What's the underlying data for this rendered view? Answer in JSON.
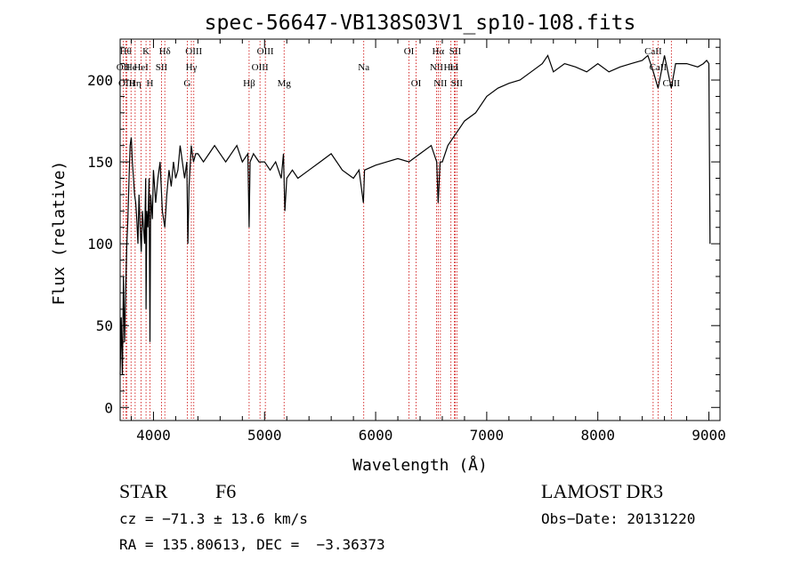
{
  "chart_data": {
    "type": "line",
    "title": "spec-56647-VB138S03V1_sp10-108.fits",
    "xlabel": "Wavelength (Å)",
    "ylabel": "Flux (relative)",
    "xlim": [
      3700,
      9100
    ],
    "ylim": [
      -8,
      225
    ],
    "x_ticks": [
      4000,
      5000,
      6000,
      7000,
      8000,
      9000
    ],
    "y_ticks": [
      0,
      50,
      100,
      150,
      200
    ],
    "grid": false,
    "line_color": "#000000",
    "marker_color": "#cc0000",
    "series": [
      {
        "x": [
          3700,
          3710,
          3720,
          3730,
          3740,
          3750,
          3760,
          3770,
          3780,
          3790,
          3800,
          3810,
          3820,
          3830,
          3840,
          3850,
          3860,
          3870,
          3880,
          3890,
          3900,
          3910,
          3920,
          3930,
          3933,
          3940,
          3950,
          3960,
          3968,
          3975,
          3990,
          4000,
          4020,
          4040,
          4060,
          4080,
          4102,
          4120,
          4140,
          4160,
          4180,
          4200,
          4220,
          4240,
          4260,
          4280,
          4300,
          4310,
          4320,
          4340,
          4360,
          4380,
          4400,
          4450,
          4500,
          4550,
          4600,
          4650,
          4700,
          4750,
          4800,
          4850,
          4861,
          4870,
          4900,
          4950,
          5000,
          5050,
          5100,
          5150,
          5170,
          5183,
          5200,
          5250,
          5300,
          5400,
          5500,
          5600,
          5700,
          5800,
          5850,
          5890,
          5900,
          6000,
          6100,
          6200,
          6300,
          6400,
          6500,
          6550,
          6563,
          6580,
          6600,
          6650,
          6700,
          6750,
          6800,
          6900,
          7000,
          7100,
          7200,
          7300,
          7400,
          7500,
          7550,
          7600,
          7700,
          7800,
          7900,
          8000,
          8100,
          8200,
          8300,
          8400,
          8450,
          8500,
          8542,
          8600,
          8662,
          8700,
          8800,
          8900,
          8950,
          8980,
          9000,
          9010
        ],
        "y": [
          20,
          55,
          20,
          80,
          40,
          70,
          100,
          115,
          140,
          160,
          165,
          150,
          140,
          130,
          125,
          115,
          100,
          130,
          110,
          95,
          120,
          110,
          100,
          140,
          60,
          120,
          110,
          140,
          40,
          130,
          115,
          145,
          125,
          140,
          150,
          120,
          110,
          130,
          145,
          135,
          150,
          140,
          145,
          160,
          150,
          140,
          150,
          100,
          135,
          160,
          150,
          155,
          155,
          150,
          155,
          160,
          155,
          150,
          155,
          160,
          150,
          155,
          110,
          150,
          155,
          150,
          150,
          145,
          150,
          140,
          155,
          120,
          140,
          145,
          140,
          145,
          150,
          155,
          145,
          140,
          145,
          125,
          145,
          148,
          150,
          152,
          150,
          155,
          160,
          150,
          125,
          150,
          150,
          160,
          165,
          170,
          175,
          180,
          190,
          195,
          198,
          200,
          205,
          210,
          215,
          205,
          210,
          208,
          205,
          210,
          205,
          208,
          210,
          212,
          215,
          205,
          195,
          215,
          195,
          210,
          210,
          208,
          210,
          212,
          210,
          100
        ]
      }
    ],
    "line_markers": [
      {
        "x": 3750,
        "label": "Hθ",
        "row": 0
      },
      {
        "x": 3727,
        "label": "OII",
        "row": 1
      },
      {
        "x": 3760,
        "label": "OIII",
        "row": 2
      },
      {
        "x": 3798,
        "label": "He",
        "row": 1
      },
      {
        "x": 3835,
        "label": "Hη",
        "row": 2
      },
      {
        "x": 3889,
        "label": "HeI",
        "row": 1
      },
      {
        "x": 3933,
        "label": "K",
        "row": 0
      },
      {
        "x": 3968,
        "label": "H",
        "row": 2
      },
      {
        "x": 4072,
        "label": "SII",
        "row": 1
      },
      {
        "x": 4102,
        "label": "Hδ",
        "row": 0
      },
      {
        "x": 4304,
        "label": "G",
        "row": 2
      },
      {
        "x": 4341,
        "label": "Hγ",
        "row": 1
      },
      {
        "x": 4363,
        "label": "OIII",
        "row": 0
      },
      {
        "x": 4861,
        "label": "Hβ",
        "row": 2
      },
      {
        "x": 4959,
        "label": "OIII",
        "row": 1
      },
      {
        "x": 5007,
        "label": "OIII",
        "row": 0
      },
      {
        "x": 5176,
        "label": "Mg",
        "row": 2
      },
      {
        "x": 5893,
        "label": "Na",
        "row": 1
      },
      {
        "x": 6300,
        "label": "OI",
        "row": 0
      },
      {
        "x": 6364,
        "label": "OI",
        "row": 2
      },
      {
        "x": 6548,
        "label": "NII",
        "row": 1
      },
      {
        "x": 6563,
        "label": "Hα",
        "row": 0
      },
      {
        "x": 6583,
        "label": "NII",
        "row": 2
      },
      {
        "x": 6678,
        "label": "HeI",
        "row": 1
      },
      {
        "x": 6716,
        "label": "SII",
        "row": 0
      },
      {
        "x": 6731,
        "label": "SII",
        "row": 2
      },
      {
        "x": 6708,
        "label": "Li",
        "row": 1
      },
      {
        "x": 8498,
        "label": "CaII",
        "row": 0
      },
      {
        "x": 8542,
        "label": "CaII",
        "row": 1
      },
      {
        "x": 8662,
        "label": "CaII",
        "row": 2
      }
    ]
  },
  "info": {
    "class_label": "STAR",
    "subclass_label": "F6",
    "survey": "LAMOST DR3",
    "cz": "cz = −71.3 ± 13.6 km/s",
    "obs_date": "Obs−Date: 20131220",
    "coords": "RA = 135.80613, DEC =  −3.36373"
  }
}
